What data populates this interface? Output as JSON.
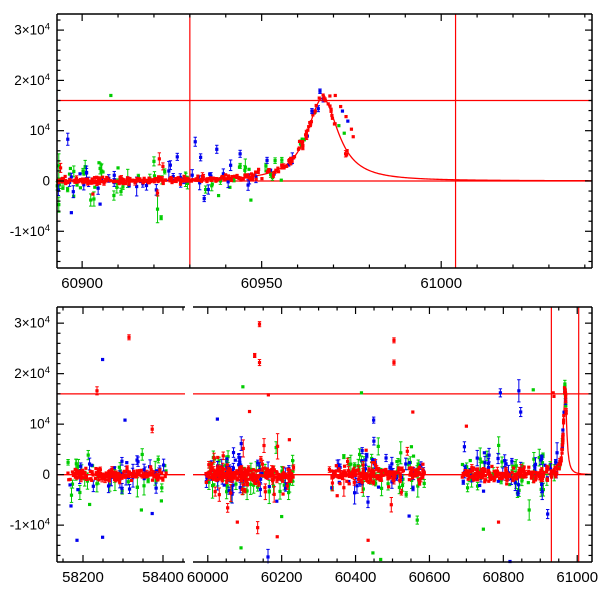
{
  "figure": {
    "title": "",
    "background": "#ffffff",
    "frame_color": "#000000",
    "accent_color": "#ff0000",
    "series_colors": {
      "red": "#ff0000",
      "green": "#00cc00",
      "blue": "#0000ee"
    }
  },
  "chart_data": {
    "type": "scatter",
    "title": "",
    "xlabel": "",
    "ylabel": "",
    "grid": false,
    "legend": "none",
    "y_axis": {
      "ylim": [
        -17300,
        33200
      ],
      "major_ticks": [
        {
          "v": 30000,
          "label": "3×10^4"
        },
        {
          "v": 20000,
          "label": "2×10^4"
        },
        {
          "v": 10000,
          "label": "10^4"
        },
        {
          "v": 0,
          "label": "0"
        },
        {
          "v": -10000,
          "label": "-1×10^4"
        }
      ],
      "minor_step": 2000
    },
    "threshold_lines_y": [
      0,
      16000
    ],
    "marker_lines_x": [
      60930,
      61004
    ],
    "model_curve": {
      "t0": 60967,
      "peak": 16500,
      "halfwidth": 5.5,
      "power": 1.1,
      "baseline": 0
    },
    "panels": [
      {
        "id": "zoom",
        "segments": [
          {
            "xlim": [
              60893,
              61042
            ],
            "major_ticks": [
              60900,
              60950,
              61000
            ],
            "tick_labels": [
              "60900",
              "60950",
              "61000"
            ],
            "minor_step": 10
          }
        ],
        "clusters": [
          {
            "color": "green",
            "n": 46,
            "x0": 60893,
            "x1": 60948,
            "sigma": 1500,
            "err": 800,
            "errv": 600,
            "seed": 12,
            "follow": 1
          },
          {
            "color": "blue",
            "n": 40,
            "x0": 60893,
            "x1": 60948,
            "sigma": 1400,
            "err": 700,
            "errv": 500,
            "seed": 13,
            "follow": 1
          },
          {
            "color": "green",
            "n": 11,
            "x0": 60948,
            "x1": 60969,
            "sigma": 1000,
            "err": 500,
            "errv": 300,
            "seed": 15,
            "follow": 1
          },
          {
            "color": "blue",
            "n": 11,
            "x0": 60948,
            "x1": 60969,
            "sigma": 1000,
            "err": 500,
            "errv": 300,
            "seed": 16,
            "follow": 1
          },
          {
            "color": "red",
            "n": 235,
            "x0": 60893,
            "x1": 60948,
            "sigma": 300,
            "err": 200,
            "errv": 150,
            "seed": 11,
            "follow": 1
          },
          {
            "color": "red",
            "n": 62,
            "x0": 60948,
            "x1": 60970.5,
            "sigma": 450,
            "err": 250,
            "errv": 150,
            "seed": 14,
            "follow": 1
          },
          {
            "color": "red",
            "n": 4,
            "x0": 60971,
            "x1": 60974.5,
            "sigma": 600,
            "err": 300,
            "errv": 200,
            "seed": 17,
            "follow": 1
          }
        ],
        "outliers": [
          [
            60908,
            17000,
            0,
            "green"
          ],
          [
            60896,
            8300,
            1200,
            "blue"
          ],
          [
            60897,
            -6300,
            0,
            "blue"
          ],
          [
            60893.5,
            3000,
            2400,
            "green"
          ],
          [
            60893.5,
            -4700,
            1500,
            "green"
          ],
          [
            60894,
            2600,
            900,
            "red"
          ],
          [
            60903,
            -2600,
            0,
            "red"
          ],
          [
            60905,
            -4600,
            0,
            "blue"
          ],
          [
            60910,
            2600,
            0,
            "green"
          ],
          [
            60920,
            3900,
            900,
            "green"
          ],
          [
            60921,
            -5600,
            2700,
            "green"
          ],
          [
            60922,
            -7300,
            400,
            "green"
          ],
          [
            60921.5,
            4400,
            1200,
            "red"
          ],
          [
            60922.5,
            2900,
            700,
            "red"
          ],
          [
            60921,
            -2400,
            600,
            "red"
          ],
          [
            60923,
            1900,
            500,
            "green"
          ],
          [
            60926.5,
            4800,
            700,
            "blue"
          ],
          [
            60931.5,
            7800,
            900,
            "blue"
          ],
          [
            60933,
            4700,
            700,
            "blue"
          ],
          [
            60937.5,
            6300,
            800,
            "blue"
          ],
          [
            60934,
            -3500,
            600,
            "blue"
          ],
          [
            60938,
            -2900,
            0,
            "green"
          ],
          [
            60944,
            5400,
            700,
            "blue"
          ],
          [
            60951.5,
            4100,
            600,
            "blue"
          ],
          [
            60947,
            -3800,
            0,
            "green"
          ],
          [
            60944,
            3000,
            500,
            "green"
          ],
          [
            60964,
            13900,
            500,
            "blue"
          ],
          [
            60969,
            16900,
            0,
            "red"
          ],
          [
            60970.5,
            17000,
            0,
            "red"
          ],
          [
            60972,
            14800,
            0,
            "red"
          ],
          [
            60973.5,
            12800,
            0,
            "red"
          ],
          [
            60975,
            10300,
            0,
            "red"
          ],
          [
            60972.5,
            13900,
            0,
            "blue"
          ],
          [
            60974,
            11900,
            0,
            "blue"
          ],
          [
            60971.5,
            11000,
            0,
            "green"
          ],
          [
            60973,
            9500,
            0,
            "green"
          ],
          [
            60975.5,
            8800,
            0,
            "red"
          ]
        ]
      },
      {
        "id": "full",
        "segments": [
          {
            "xlim": [
              58135,
              58455
            ],
            "major_ticks": [
              58200,
              58400
            ],
            "tick_labels": [
              "58200",
              "58400"
            ],
            "minor_step": 50
          },
          {
            "xlim": [
              59960,
              61040
            ],
            "major_ticks": [
              60000,
              60200,
              60400,
              60600,
              60800,
              61000
            ],
            "tick_labels": [
              "60000",
              "60200",
              "60400",
              "60600",
              "60800",
              "61000"
            ],
            "minor_step": 50
          }
        ],
        "clusters": [
          {
            "color": "green",
            "n": 40,
            "x0": 58162,
            "x1": 58408,
            "sigma": 2000,
            "err": 900,
            "errv": 700,
            "seed": 22
          },
          {
            "color": "blue",
            "n": 36,
            "x0": 58165,
            "x1": 58405,
            "sigma": 1900,
            "err": 800,
            "errv": 600,
            "seed": 23
          },
          {
            "color": "green",
            "n": 52,
            "x0": 59995,
            "x1": 60232,
            "sigma": 2500,
            "err": 900,
            "errv": 700,
            "seed": 26
          },
          {
            "color": "blue",
            "n": 46,
            "x0": 59995,
            "x1": 60232,
            "sigma": 2300,
            "err": 800,
            "errv": 600,
            "seed": 27
          },
          {
            "color": "green",
            "n": 46,
            "x0": 60328,
            "x1": 60588,
            "sigma": 2400,
            "err": 900,
            "errv": 700,
            "seed": 30
          },
          {
            "color": "blue",
            "n": 40,
            "x0": 60328,
            "x1": 60588,
            "sigma": 2300,
            "err": 800,
            "errv": 600,
            "seed": 31
          },
          {
            "color": "green",
            "n": 44,
            "x0": 60688,
            "x1": 60950,
            "sigma": 2200,
            "err": 900,
            "errv": 700,
            "seed": 33,
            "follow": 1
          },
          {
            "color": "blue",
            "n": 44,
            "x0": 60688,
            "x1": 60950,
            "sigma": 2300,
            "err": 800,
            "errv": 600,
            "seed": 34,
            "follow": 1
          },
          {
            "color": "red",
            "n": 170,
            "x0": 58162,
            "x1": 58408,
            "sigma": 600,
            "err": 250,
            "errv": 200,
            "seed": 21
          },
          {
            "color": "red",
            "n": 200,
            "x0": 59995,
            "x1": 60232,
            "sigma": 700,
            "err": 250,
            "errv": 200,
            "seed": 24
          },
          {
            "color": "red",
            "n": 32,
            "x0": 59995,
            "x1": 60232,
            "sigma": 2700,
            "err": 900,
            "errv": 700,
            "seed": 25
          },
          {
            "color": "red",
            "n": 185,
            "x0": 60328,
            "x1": 60588,
            "sigma": 700,
            "err": 250,
            "errv": 200,
            "seed": 28
          },
          {
            "color": "red",
            "n": 20,
            "x0": 60328,
            "x1": 60588,
            "sigma": 2400,
            "err": 900,
            "errv": 700,
            "seed": 29
          },
          {
            "color": "red",
            "n": 195,
            "x0": 60688,
            "x1": 60950,
            "sigma": 650,
            "err": 250,
            "errv": 200,
            "seed": 32,
            "follow": 1
          },
          {
            "color": "green",
            "n": 7,
            "x0": 60950,
            "x1": 60969,
            "sigma": 900,
            "err": 400,
            "errv": 300,
            "seed": 36,
            "follow": 1
          },
          {
            "color": "blue",
            "n": 7,
            "x0": 60950,
            "x1": 60969,
            "sigma": 900,
            "err": 400,
            "errv": 300,
            "seed": 37,
            "follow": 1
          },
          {
            "color": "red",
            "n": 30,
            "x0": 60950,
            "x1": 60971,
            "sigma": 500,
            "err": 250,
            "errv": 150,
            "seed": 35,
            "follow": 1
          }
        ],
        "outliers": [
          [
            58235,
            16600,
            800,
            "red"
          ],
          [
            58249,
            22800,
            0,
            "blue"
          ],
          [
            58315,
            27200,
            500,
            "red"
          ],
          [
            58305,
            10800,
            0,
            "blue"
          ],
          [
            58373,
            9000,
            700,
            "red"
          ],
          [
            58185,
            -13000,
            0,
            "blue"
          ],
          [
            58249,
            -12400,
            0,
            "blue"
          ],
          [
            58346,
            -7000,
            0,
            "green"
          ],
          [
            58373,
            -7700,
            0,
            "blue"
          ],
          [
            58396,
            -5200,
            0,
            "green"
          ],
          [
            58170,
            -6200,
            0,
            "blue"
          ],
          [
            60140,
            29800,
            500,
            "red"
          ],
          [
            60127,
            23600,
            400,
            "red"
          ],
          [
            60140,
            22200,
            600,
            "red"
          ],
          [
            60095,
            17400,
            0,
            "green"
          ],
          [
            60164,
            15800,
            0,
            "red"
          ],
          [
            60026,
            11000,
            0,
            "blue"
          ],
          [
            60113,
            12500,
            0,
            "red"
          ],
          [
            60090,
            -14500,
            0,
            "green"
          ],
          [
            60163,
            -16300,
            1500,
            "blue"
          ],
          [
            60080,
            -9400,
            0,
            "red"
          ],
          [
            60135,
            -10500,
            1200,
            "red"
          ],
          [
            60188,
            -12300,
            0,
            "red"
          ],
          [
            60200,
            -8300,
            0,
            "green"
          ],
          [
            60504,
            26600,
            500,
            "red"
          ],
          [
            60504,
            22200,
            500,
            "red"
          ],
          [
            60416,
            16200,
            0,
            "green"
          ],
          [
            60447,
            -15500,
            0,
            "green"
          ],
          [
            60468,
            -16800,
            0,
            "green"
          ],
          [
            60434,
            -13000,
            0,
            "red"
          ],
          [
            60567,
            -9000,
            800,
            "green"
          ],
          [
            60545,
            -8200,
            0,
            "blue"
          ],
          [
            60449,
            10800,
            600,
            "blue"
          ],
          [
            60555,
            12400,
            0,
            "red"
          ],
          [
            60792,
            16200,
            800,
            "blue"
          ],
          [
            60842,
            16600,
            2200,
            "blue"
          ],
          [
            60881,
            16800,
            0,
            "green"
          ],
          [
            60935,
            16200,
            0,
            "red"
          ],
          [
            60937,
            15500,
            0,
            "red"
          ],
          [
            60818,
            -17200,
            0,
            "blue"
          ],
          [
            60787,
            -9400,
            0,
            "red"
          ],
          [
            60746,
            -10800,
            0,
            "green"
          ],
          [
            60920,
            -7800,
            900,
            "blue"
          ],
          [
            60847,
            12400,
            900,
            "blue"
          ],
          [
            60700,
            9600,
            0,
            "red"
          ],
          [
            60870,
            -7000,
            2000,
            "green"
          ],
          [
            60966,
            16300,
            0,
            "red"
          ],
          [
            60967.5,
            16800,
            0,
            "red"
          ],
          [
            60968.5,
            15900,
            0,
            "red"
          ]
        ]
      }
    ]
  }
}
